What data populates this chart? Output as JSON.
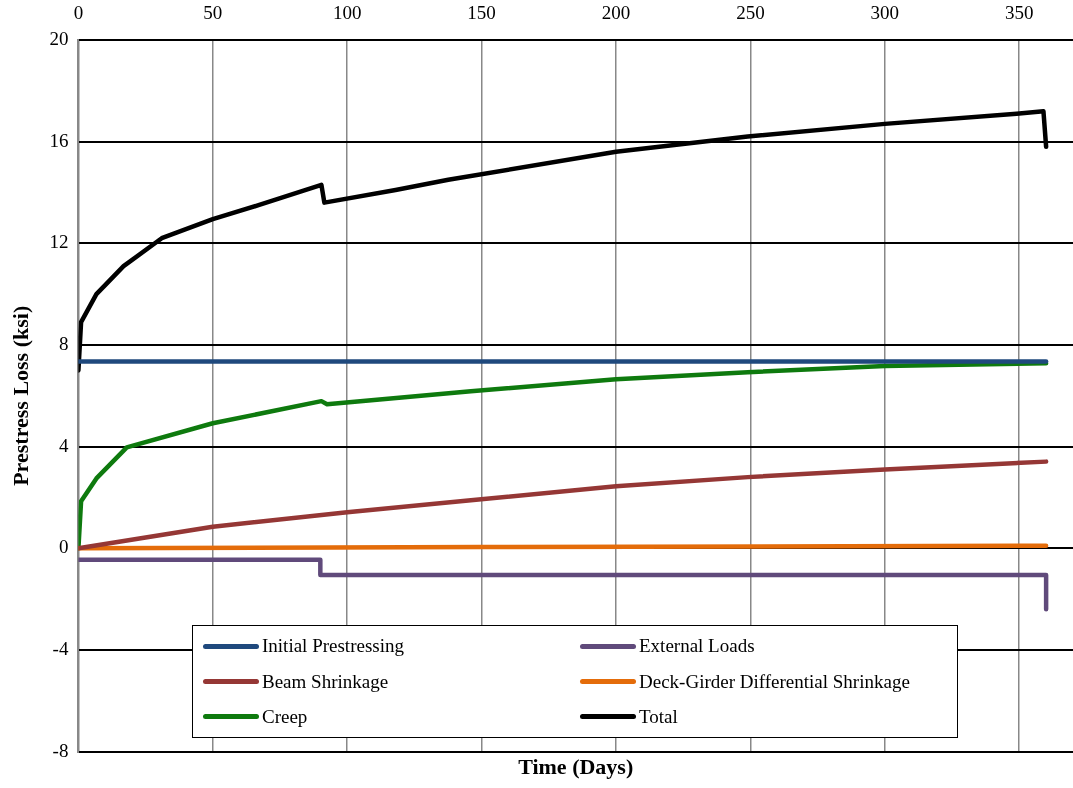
{
  "chart_data": {
    "type": "line",
    "xlabel": "Time (Days)",
    "ylabel": "Prestress Loss (ksi)",
    "xlim": [
      0,
      370
    ],
    "xticks": [
      0,
      50,
      100,
      150,
      200,
      250,
      300,
      350
    ],
    "ylim": [
      -8,
      20
    ],
    "yticks": [
      -8,
      -4,
      0,
      4,
      8,
      12,
      16,
      20
    ],
    "grid": true,
    "legend": "bottom",
    "marker": "none",
    "line_style": "solid",
    "series": [
      {
        "name": "Initial Prestressing",
        "color": "#1f497d",
        "x": [
          0,
          360
        ],
        "values": [
          7.35,
          7.35
        ]
      },
      {
        "name": "External Loads",
        "color": "#604a7b",
        "x": [
          0,
          90,
          90,
          360,
          360
        ],
        "values": [
          -0.45,
          -0.45,
          -1.05,
          -1.05,
          -2.4
        ]
      },
      {
        "name": "Beam Shrinkage",
        "color": "#953735",
        "x": [
          0,
          50,
          100,
          146,
          200,
          249,
          300,
          360
        ],
        "values": [
          0,
          0.85,
          1.42,
          1.89,
          2.44,
          2.8,
          3.1,
          3.41
        ]
      },
      {
        "name": "Deck-Girder Differential Shrinkage",
        "color": "#e46c0a",
        "x": [
          0,
          150,
          360
        ],
        "values": [
          0,
          0.05,
          0.1
        ]
      },
      {
        "name": "Creep",
        "color": "#0e7a0e",
        "x": [
          0,
          1,
          6.7,
          18,
          50,
          90.4,
          92.5,
          146,
          200,
          249,
          300,
          360
        ],
        "values": [
          0,
          1.85,
          2.75,
          3.97,
          4.92,
          5.79,
          5.67,
          6.18,
          6.65,
          6.93,
          7.17,
          7.28
        ]
      },
      {
        "name": "Total",
        "color": "#000000",
        "x": [
          0,
          1,
          6.7,
          16.8,
          31,
          50,
          67,
          90.4,
          91.5,
          118,
          137.6,
          200,
          249,
          300,
          349,
          359,
          360
        ],
        "values": [
          7.0,
          8.9,
          10.0,
          11.1,
          12.2,
          12.95,
          13.5,
          14.3,
          13.6,
          14.1,
          14.5,
          15.6,
          16.2,
          16.7,
          17.1,
          17.2,
          15.8
        ]
      }
    ]
  }
}
